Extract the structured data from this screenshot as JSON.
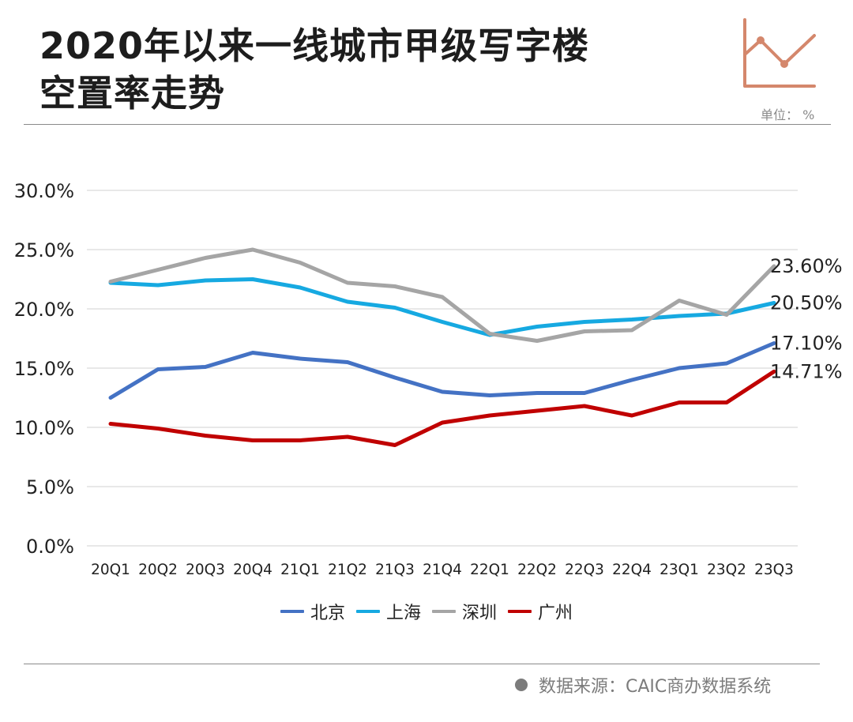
{
  "header": {
    "title_line1": "2020年以来一线城市甲级写字楼",
    "title_line2": "空置率走势",
    "unit": "单位： %",
    "icon": "line-chart-icon",
    "accent_color": "#d4876c"
  },
  "footer": {
    "source": "数据来源：CAIC商办数据系统"
  },
  "chart_data": {
    "type": "line",
    "title": "2020年以来一线城市甲级写字楼空置率走势",
    "xlabel": "",
    "ylabel": "",
    "unit": "%",
    "ylim": [
      0,
      30
    ],
    "yticks": [
      "0.0%",
      "5.0%",
      "10.0%",
      "15.0%",
      "20.0%",
      "25.0%",
      "30.0%"
    ],
    "ytick_values": [
      0,
      5,
      10,
      15,
      20,
      25,
      30
    ],
    "grid": true,
    "legend_position": "bottom",
    "categories": [
      "20Q1",
      "20Q2",
      "20Q3",
      "20Q4",
      "21Q1",
      "21Q2",
      "21Q3",
      "21Q4",
      "22Q1",
      "22Q2",
      "22Q3",
      "22Q4",
      "23Q1",
      "23Q2",
      "23Q3"
    ],
    "series": [
      {
        "name": "北京",
        "color": "#4472c4",
        "values": [
          12.5,
          14.9,
          15.1,
          16.3,
          15.8,
          15.5,
          14.2,
          13.0,
          12.7,
          12.9,
          12.9,
          14.0,
          15.0,
          15.4,
          17.1
        ],
        "end_label": "17.10%"
      },
      {
        "name": "上海",
        "color": "#16a9e1",
        "values": [
          22.2,
          22.0,
          22.4,
          22.5,
          21.8,
          20.6,
          20.1,
          18.9,
          17.8,
          18.5,
          18.9,
          19.1,
          19.4,
          19.6,
          20.5
        ],
        "end_label": "20.50%"
      },
      {
        "name": "深圳",
        "color": "#a5a5a5",
        "values": [
          22.3,
          23.3,
          24.3,
          25.0,
          23.9,
          22.2,
          21.9,
          21.0,
          17.9,
          17.3,
          18.1,
          18.2,
          20.7,
          19.5,
          23.6
        ],
        "end_label": "23.60%"
      },
      {
        "name": "广州",
        "color": "#c00000",
        "values": [
          10.3,
          9.9,
          9.3,
          8.9,
          8.9,
          9.2,
          8.5,
          10.4,
          11.0,
          11.4,
          11.8,
          11.0,
          12.1,
          12.1,
          14.71
        ],
        "end_label": "14.71%"
      }
    ]
  }
}
